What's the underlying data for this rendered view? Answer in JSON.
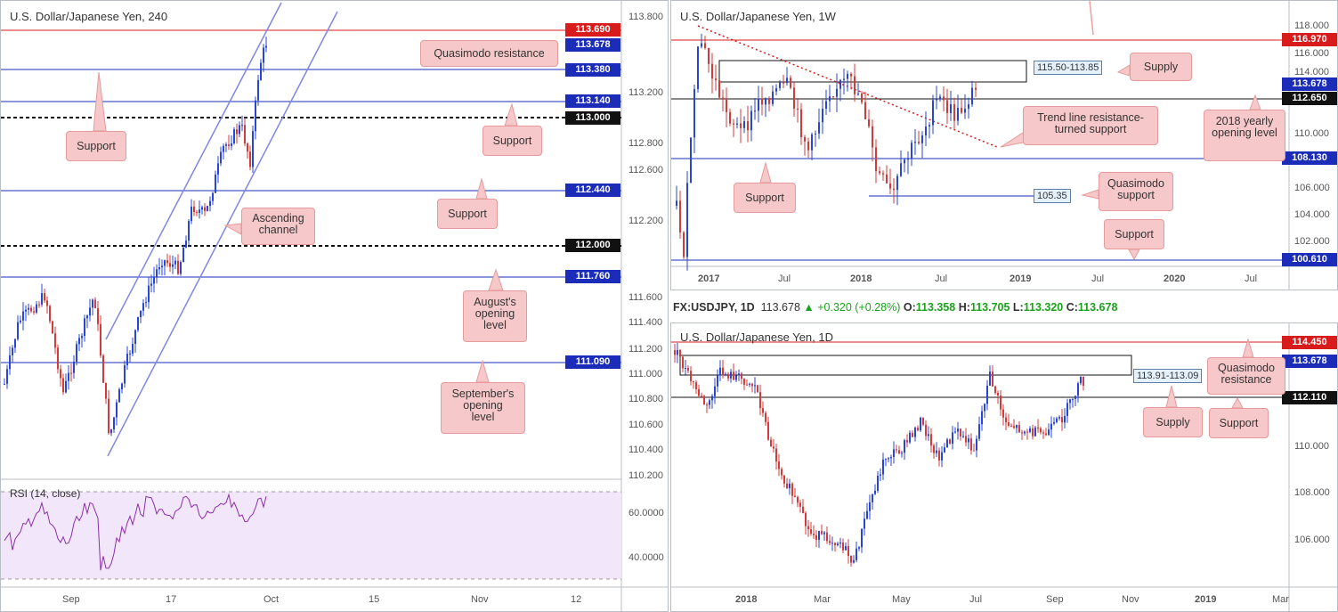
{
  "colors": {
    "resistance": "#d81b1b",
    "support": "#1a2cb8",
    "bull": "#2945d6",
    "bear": "#d33b3b",
    "rsi": "#8b2fa8",
    "callout": "#f7c8c9",
    "trendline": "#7f86e8"
  },
  "panel_4h": {
    "title": "U.S. Dollar/Japanese Yen, 240",
    "price_labels": [
      {
        "text": "113.690",
        "kind": "resistance"
      },
      {
        "text": "113.678",
        "kind": "support"
      },
      {
        "text": "113.380",
        "kind": "support"
      },
      {
        "text": "113.140",
        "kind": "support"
      },
      {
        "text": "113.000",
        "kind": "black"
      },
      {
        "text": "112.440",
        "kind": "support"
      },
      {
        "text": "112.000",
        "kind": "black"
      },
      {
        "text": "111.760",
        "kind": "support"
      },
      {
        "text": "111.090",
        "kind": "support"
      }
    ],
    "y_ticks": [
      "113.800",
      "113.200",
      "112.800",
      "112.600",
      "112.200",
      "111.600",
      "111.400",
      "111.200",
      "111.000",
      "110.800",
      "110.600",
      "110.400",
      "110.200"
    ],
    "x_ticks": [
      "Sep",
      "17",
      "Oct",
      "15",
      "Nov",
      "12"
    ],
    "rsi_title": "RSI (14, close)",
    "rsi_ticks": [
      "60.0000",
      "40.0000"
    ],
    "callouts": [
      "Quasimodo resistance",
      "Support",
      "Support",
      "Support",
      "Ascending channel",
      "August's opening level",
      "September's opening level"
    ]
  },
  "panel_1w": {
    "title": "U.S. Dollar/Japanese Yen, 1W",
    "price_labels": [
      {
        "text": "116.970",
        "kind": "resistance"
      },
      {
        "text": "113.678",
        "kind": "support"
      },
      {
        "text": "112.650",
        "kind": "black"
      },
      {
        "text": "108.130",
        "kind": "support"
      },
      {
        "text": "100.610",
        "kind": "support"
      }
    ],
    "y_ticks": [
      "118.000",
      "116.000",
      "114.000",
      "110.000",
      "106.000",
      "104.000",
      "102.000"
    ],
    "x_ticks": [
      "2017",
      "Jul",
      "2018",
      "Jul",
      "2019",
      "Jul",
      "2020",
      "Jul"
    ],
    "zone_labels": [
      "115.50-113.85",
      "105.35"
    ],
    "callouts": [
      "Supply",
      "Trend line resistance-turned support",
      "2018 yearly opening level",
      "Support",
      "Quasimodo support",
      "Support"
    ]
  },
  "panel_1d": {
    "header": {
      "symbol": "FX:USDJPY, 1D",
      "price": "113.678",
      "change": "▲ +0.320 (+0.28%)",
      "o": "113.358",
      "h": "113.705",
      "l": "113.320",
      "c": "113.678",
      "o_label": "O:",
      "h_label": "H:",
      "l_label": "L:",
      "c_label": "C:"
    },
    "title": "U.S. Dollar/Japanese Yen, 1D",
    "price_labels": [
      {
        "text": "114.450",
        "kind": "resistance"
      },
      {
        "text": "113.678",
        "kind": "support"
      },
      {
        "text": "112.110",
        "kind": "black"
      }
    ],
    "y_ticks": [
      "110.000",
      "108.000",
      "106.000"
    ],
    "x_ticks": [
      "2018",
      "Mar",
      "May",
      "Jul",
      "Sep",
      "Nov",
      "2019",
      "Mar"
    ],
    "zone_labels": [
      "113.91-113.09"
    ],
    "callouts": [
      "Quasimodo resistance",
      "Supply",
      "Support"
    ]
  }
}
